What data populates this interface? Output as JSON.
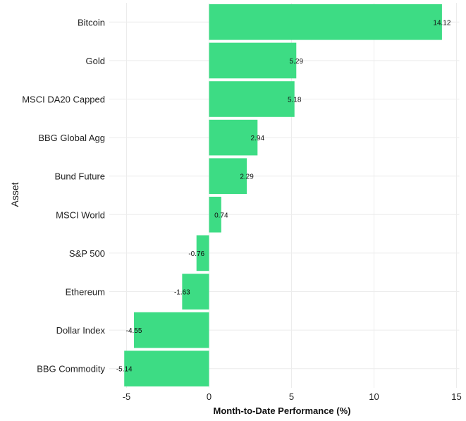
{
  "chart_data": {
    "type": "bar",
    "orientation": "horizontal",
    "categories": [
      "Bitcoin",
      "Gold",
      "MSCI DA20 Capped",
      "BBG Global Agg",
      "Bund Future",
      "MSCI World",
      "S&P 500",
      "Ethereum",
      "Dollar Index",
      "BBG Commodity"
    ],
    "values": [
      14.12,
      5.29,
      5.18,
      2.94,
      2.29,
      0.74,
      -0.76,
      -1.63,
      -4.55,
      -5.14
    ],
    "value_labels": [
      "14.12",
      "5.29",
      "5.18",
      "2.94",
      "2.29",
      "0.74",
      "-0.76",
      "-1.63",
      "-4.55",
      "-5.14"
    ],
    "title": "",
    "xlabel": "Month-to-Date Performance (%)",
    "ylabel": "Asset",
    "xlim": [
      -5.5,
      15
    ],
    "xticks": [
      -5,
      0,
      5,
      10,
      15
    ],
    "xtick_labels": [
      "-5",
      "0",
      "5",
      "10",
      "15"
    ],
    "bar_color": "#3ddc84",
    "grid": true
  }
}
